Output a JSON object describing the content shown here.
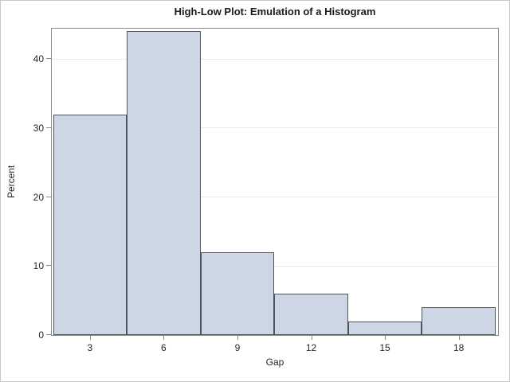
{
  "chart_data": {
    "type": "bar",
    "subtype": "histogram-emulation-high-low",
    "title": "High-Low Plot: Emulation of a Histogram",
    "xlabel": "Gap",
    "ylabel": "Percent",
    "categories": [
      3,
      6,
      9,
      12,
      15,
      18
    ],
    "values": [
      32,
      44,
      12,
      6,
      2,
      4
    ],
    "bin_width": 3,
    "x_ticks": [
      3,
      6,
      9,
      12,
      15,
      18
    ],
    "y_ticks": [
      0,
      10,
      20,
      30,
      40
    ],
    "xlim": [
      1.45,
      19.6
    ],
    "ylim": [
      0,
      44.4
    ],
    "grid": "horizontal",
    "legend": "none",
    "colors": {
      "bar_fill": "#ccd6e4",
      "bar_border": "#4d545b",
      "frame": "#8a8a8a",
      "grid": "#ececec",
      "tick": "#8a8a8a",
      "text": "#262626",
      "title_text": "#1a1a1a",
      "page_border": "#c9c9c9",
      "background": "#ffffff"
    }
  }
}
